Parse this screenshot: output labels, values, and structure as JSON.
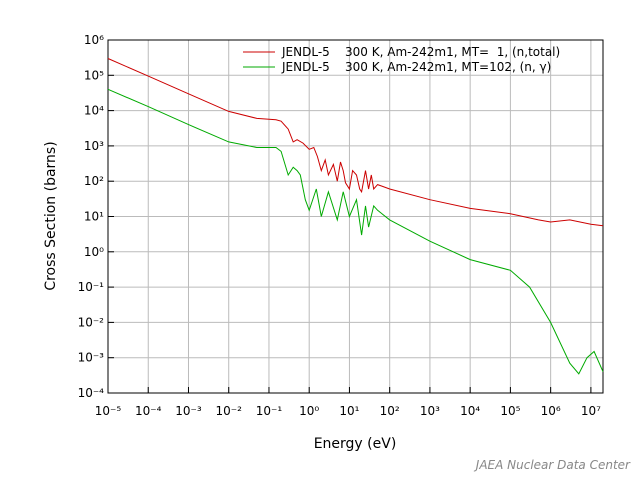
{
  "chart_data": {
    "type": "line",
    "xlabel": "Energy (eV)",
    "ylabel": "Cross Section (barns)",
    "annotation": "JAEA Nuclear Data Center",
    "xscale": "log",
    "yscale": "log",
    "grid": true,
    "legend": "top-right",
    "xlim": [
      1e-05,
      20000000
    ],
    "ylim": [
      0.0001,
      1000000
    ],
    "xticks": [
      {
        "value": 1e-05,
        "label": "10⁻⁵"
      },
      {
        "value": 0.0001,
        "label": "10⁻⁴"
      },
      {
        "value": 0.001,
        "label": "10⁻³"
      },
      {
        "value": 0.01,
        "label": "10⁻²"
      },
      {
        "value": 0.1,
        "label": "10⁻¹"
      },
      {
        "value": 1,
        "label": "10⁰"
      },
      {
        "value": 10,
        "label": "10¹"
      },
      {
        "value": 100,
        "label": "10²"
      },
      {
        "value": 1000,
        "label": "10³"
      },
      {
        "value": 10000,
        "label": "10⁴"
      },
      {
        "value": 100000,
        "label": "10⁵"
      },
      {
        "value": 1000000,
        "label": "10⁶"
      },
      {
        "value": 10000000,
        "label": "10⁷"
      }
    ],
    "yticks": [
      {
        "value": 0.0001,
        "label": "10⁻⁴"
      },
      {
        "value": 0.001,
        "label": "10⁻³"
      },
      {
        "value": 0.01,
        "label": "10⁻²"
      },
      {
        "value": 0.1,
        "label": "10⁻¹"
      },
      {
        "value": 1,
        "label": "10⁰"
      },
      {
        "value": 10,
        "label": "10¹"
      },
      {
        "value": 100,
        "label": "10²"
      },
      {
        "value": 1000,
        "label": "10³"
      },
      {
        "value": 10000,
        "label": "10⁴"
      },
      {
        "value": 100000,
        "label": "10⁵"
      },
      {
        "value": 1000000,
        "label": "10⁶"
      }
    ],
    "series": [
      {
        "name": "JENDL-5    300 K, Am-242m1, MT=  1, (n,total)",
        "color": "#cc0000",
        "x": [
          1e-05,
          0.0001,
          0.001,
          0.01,
          0.05,
          0.15,
          0.2,
          0.3,
          0.4,
          0.5,
          0.7,
          1,
          1.3,
          1.6,
          2,
          2.5,
          3,
          4,
          5,
          6,
          7,
          8,
          10,
          12,
          15,
          18,
          20,
          25,
          30,
          35,
          40,
          50,
          100,
          1000,
          10000,
          100000,
          500000,
          1000000,
          3000000,
          10000000,
          20000000
        ],
        "values": [
          300000,
          95000,
          30000,
          9500,
          6000,
          5500,
          5000,
          3000,
          1300,
          1500,
          1200,
          800,
          900,
          500,
          200,
          400,
          150,
          300,
          100,
          350,
          200,
          90,
          60,
          200,
          150,
          60,
          50,
          200,
          60,
          150,
          60,
          80,
          60,
          30,
          17,
          12,
          8,
          7,
          8,
          6,
          5.5
        ]
      },
      {
        "name": "JENDL-5    300 K, Am-242m1, MT=102, (n, γ)",
        "color": "#00aa00",
        "x": [
          1e-05,
          0.0001,
          0.001,
          0.01,
          0.05,
          0.15,
          0.2,
          0.3,
          0.4,
          0.5,
          0.6,
          0.8,
          1,
          1.5,
          2,
          3,
          5,
          7,
          10,
          15,
          20,
          25,
          30,
          40,
          50,
          100,
          1000,
          10000,
          100000,
          300000,
          1000000,
          3000000,
          5000000,
          8000000,
          12000000,
          20000000
        ],
        "values": [
          40000,
          13000,
          4000,
          1300,
          900,
          900,
          700,
          150,
          250,
          200,
          150,
          30,
          15,
          60,
          10,
          50,
          8,
          50,
          10,
          30,
          3,
          20,
          5,
          20,
          15,
          8,
          2,
          0.6,
          0.3,
          0.1,
          0.01,
          0.0007,
          0.00035,
          0.001,
          0.0015,
          0.0004
        ]
      }
    ]
  }
}
